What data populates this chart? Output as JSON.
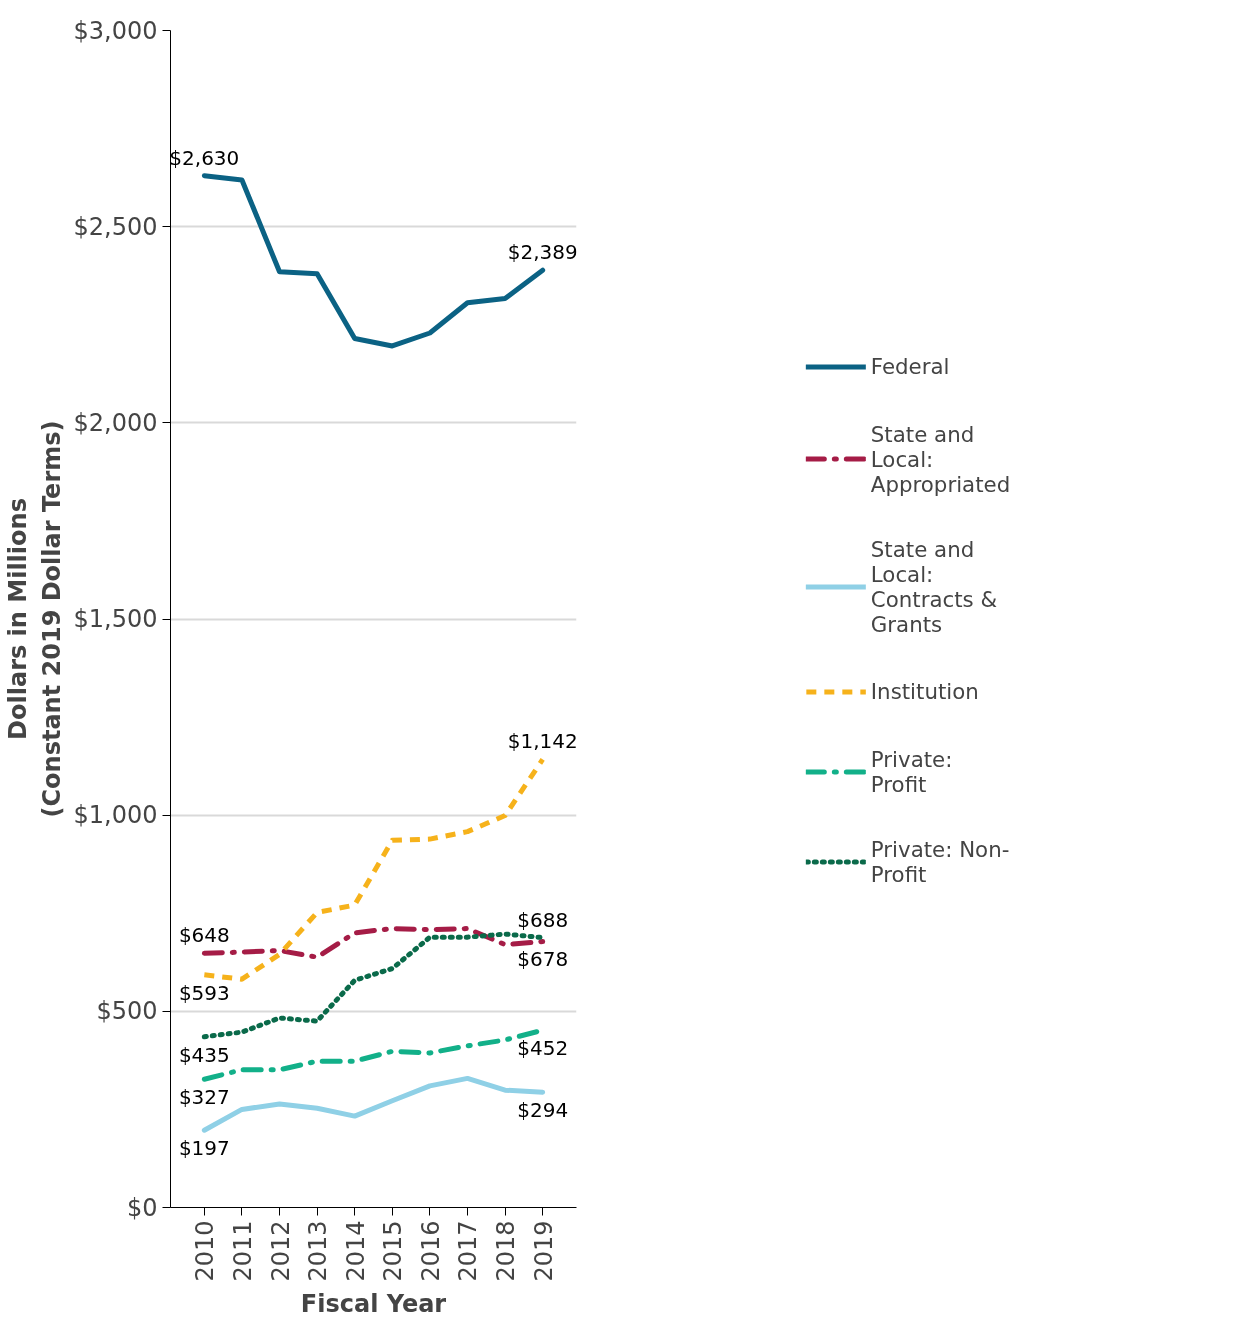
{
  "chart_data": {
    "type": "line",
    "xlabel": "Fiscal Year",
    "ylabel": "Dollars in Millions\n(Constant 2019 Dollar Terms)",
    "categories": [
      "2010",
      "2011",
      "2012",
      "2013",
      "2014",
      "2015",
      "2016",
      "2017",
      "2018",
      "2019"
    ],
    "ylim": [
      0,
      3000
    ],
    "yticks": [
      {
        "value": 0,
        "label": "$0"
      },
      {
        "value": 500,
        "label": "$500"
      },
      {
        "value": 1000,
        "label": "$1,000"
      },
      {
        "value": 1500,
        "label": "$1,500"
      },
      {
        "value": 2000,
        "label": "$2,000"
      },
      {
        "value": 2500,
        "label": "$2,500"
      },
      {
        "value": 3000,
        "label": "$3,000"
      }
    ],
    "grid": "y",
    "legend": "right",
    "marker": "none",
    "series": [
      {
        "name": "Federal",
        "color": "#0b6284",
        "line_style": "solid",
        "values": [
          2630,
          2619,
          2385,
          2380,
          2215,
          2196,
          2229,
          2306,
          2317,
          2389
        ],
        "value_labels": [
          "$2,630",
          null,
          null,
          null,
          null,
          null,
          null,
          null,
          null,
          "$2,389"
        ]
      },
      {
        "name": "State and Local: Appropriated",
        "color": "#a51c46",
        "line_style": "dashdot",
        "values": [
          648,
          651,
          655,
          638,
          700,
          711,
          708,
          711,
          670,
          678
        ],
        "value_labels": [
          "$648",
          null,
          null,
          null,
          null,
          null,
          null,
          null,
          null,
          "$678"
        ]
      },
      {
        "name": "State and Local: Contracts & Grants",
        "color": "#8fd0e6",
        "line_style": "solid",
        "values": [
          197,
          250,
          264,
          253,
          233,
          272,
          310,
          329,
          299,
          294
        ],
        "value_labels": [
          "$197",
          null,
          null,
          null,
          null,
          null,
          null,
          null,
          null,
          "$294"
        ]
      },
      {
        "name": "Institution",
        "color": "#f6b21b",
        "line_style": "dashed",
        "values": [
          593,
          582,
          645,
          752,
          771,
          936,
          939,
          958,
          999,
          1142
        ],
        "value_labels": [
          "$593",
          null,
          null,
          null,
          null,
          null,
          null,
          null,
          null,
          "$1,142"
        ]
      },
      {
        "name": "Private: Profit",
        "color": "#12b089",
        "line_style": "dashdot",
        "values": [
          327,
          351,
          351,
          373,
          373,
          398,
          394,
          412,
          427,
          452
        ],
        "value_labels": [
          "$327",
          null,
          null,
          null,
          null,
          null,
          null,
          null,
          null,
          "$452"
        ]
      },
      {
        "name": "Private: Non-Profit",
        "color": "#0a6a4a",
        "line_style": "dotted",
        "values": [
          435,
          447,
          483,
          475,
          579,
          609,
          689,
          689,
          697,
          688
        ],
        "value_labels": [
          "$435",
          null,
          null,
          null,
          null,
          null,
          null,
          null,
          null,
          "$688"
        ]
      }
    ]
  }
}
